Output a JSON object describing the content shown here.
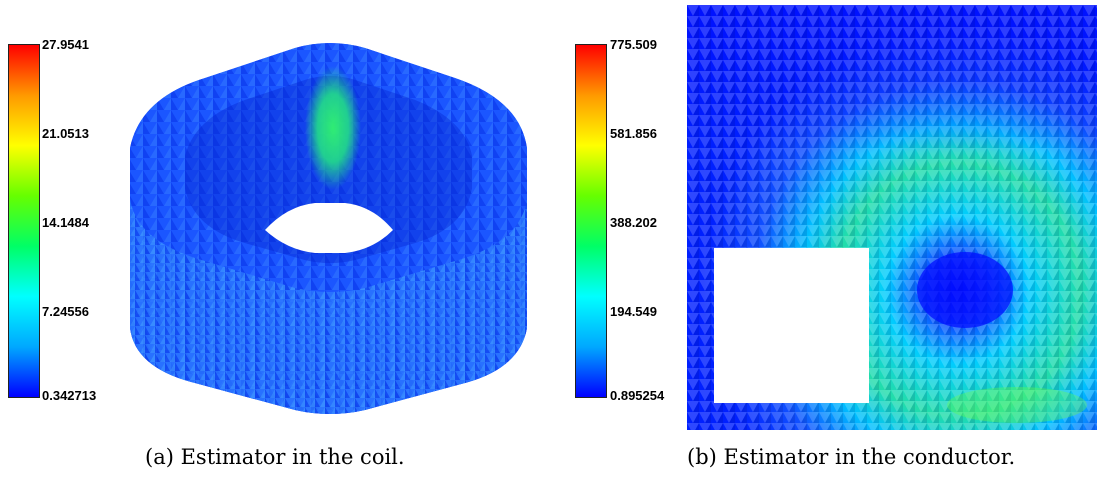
{
  "figures": [
    {
      "caption": "(a) Estimator in the coil.",
      "colorbar": {
        "ticks": [
          "27.9541",
          "21.0513",
          "14.1484",
          "7.24556",
          "0.342713"
        ],
        "colormap": [
          "#0000ff",
          "#00a8ff",
          "#00ffff",
          "#00ff66",
          "#66ff00",
          "#ffff00",
          "#ff9900",
          "#ff0000"
        ]
      }
    },
    {
      "caption": "(b) Estimator in the conductor.",
      "colorbar": {
        "ticks": [
          "775.509",
          "581.856",
          "388.202",
          "194.549",
          "0.895254"
        ],
        "colormap": [
          "#0000ff",
          "#00a8ff",
          "#00ffff",
          "#00ff66",
          "#66ff00",
          "#ffff00",
          "#ff9900",
          "#ff0000"
        ]
      }
    }
  ]
}
